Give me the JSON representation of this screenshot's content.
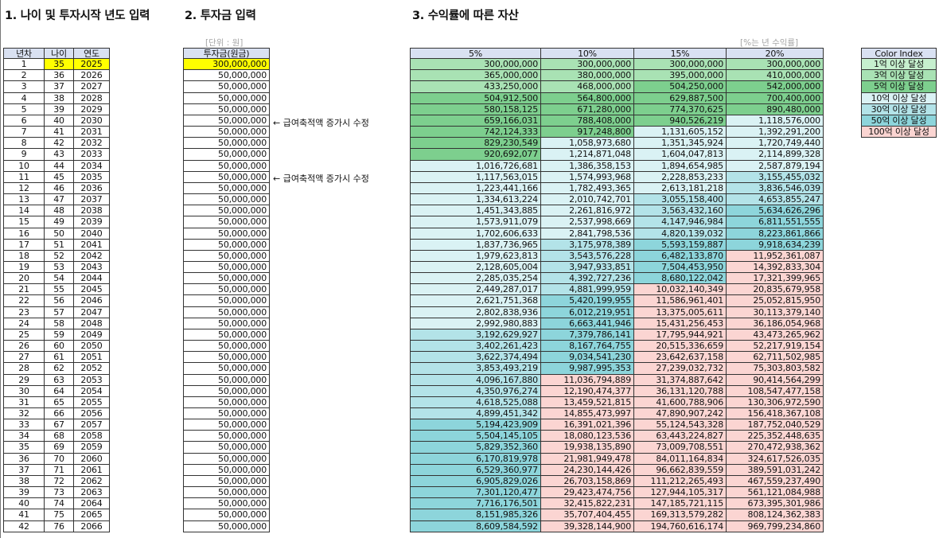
{
  "titles": {
    "section1": "1. 나이 및 투자시작 년도 입력",
    "section2": "2. 투자금 입력",
    "section3": "3. 수익률에 따른 자산"
  },
  "notes": {
    "unit": "[단위 : 원]",
    "rate": "[%는 년 수익률]"
  },
  "annotations": [
    "← 급여축적액 증가시 수정",
    "← 급여축적액 증가시 수정"
  ],
  "left_headers": [
    "년차",
    "나이",
    "연도"
  ],
  "invest_header": "투자금(원금)",
  "rate_headers": [
    "5%",
    "10%",
    "15%",
    "20%"
  ],
  "color_index": {
    "title": "Color Index",
    "items": [
      "1억 이상 달성",
      "3억 이상 달성",
      "5억 이상 달성",
      "10억 이상 달성",
      "30억 이상 달성",
      "50억 이상 달성",
      "100억 이상 달성"
    ]
  },
  "colors": {
    "header": "#d9e1f2",
    "input": "#ffff00",
    "levels": [
      "#c6efce",
      "#a9e2b4",
      "#7dcf8e",
      "#daf2f4",
      "#b3e3e8",
      "#8dd5db",
      "#fbd5d2"
    ]
  },
  "rows": [
    [
      "1",
      "35",
      "2025",
      "300,000,000",
      "300,000,000",
      "300,000,000",
      "300,000,000",
      "300,000,000"
    ],
    [
      "2",
      "36",
      "2026",
      "50,000,000",
      "365,000,000",
      "380,000,000",
      "395,000,000",
      "410,000,000"
    ],
    [
      "3",
      "37",
      "2027",
      "50,000,000",
      "433,250,000",
      "468,000,000",
      "504,250,000",
      "542,000,000"
    ],
    [
      "4",
      "38",
      "2028",
      "50,000,000",
      "504,912,500",
      "564,800,000",
      "629,887,500",
      "700,400,000"
    ],
    [
      "5",
      "39",
      "2029",
      "50,000,000",
      "580,158,125",
      "671,280,000",
      "774,370,625",
      "890,480,000"
    ],
    [
      "6",
      "40",
      "2030",
      "50,000,000",
      "659,166,031",
      "788,408,000",
      "940,526,219",
      "1,118,576,000"
    ],
    [
      "7",
      "41",
      "2031",
      "50,000,000",
      "742,124,333",
      "917,248,800",
      "1,131,605,152",
      "1,392,291,200"
    ],
    [
      "8",
      "42",
      "2032",
      "50,000,000",
      "829,230,549",
      "1,058,973,680",
      "1,351,345,924",
      "1,720,749,440"
    ],
    [
      "9",
      "43",
      "2033",
      "50,000,000",
      "920,692,077",
      "1,214,871,048",
      "1,604,047,813",
      "2,114,899,328"
    ],
    [
      "10",
      "44",
      "2034",
      "50,000,000",
      "1,016,726,681",
      "1,386,358,153",
      "1,894,654,985",
      "2,587,879,194"
    ],
    [
      "11",
      "45",
      "2035",
      "50,000,000",
      "1,117,563,015",
      "1,574,993,968",
      "2,228,853,233",
      "3,155,455,032"
    ],
    [
      "12",
      "46",
      "2036",
      "50,000,000",
      "1,223,441,166",
      "1,782,493,365",
      "2,613,181,218",
      "3,836,546,039"
    ],
    [
      "13",
      "47",
      "2037",
      "50,000,000",
      "1,334,613,224",
      "2,010,742,701",
      "3,055,158,400",
      "4,653,855,247"
    ],
    [
      "14",
      "48",
      "2038",
      "50,000,000",
      "1,451,343,885",
      "2,261,816,972",
      "3,563,432,160",
      "5,634,626,296"
    ],
    [
      "15",
      "49",
      "2039",
      "50,000,000",
      "1,573,911,079",
      "2,537,998,669",
      "4,147,946,984",
      "6,811,551,555"
    ],
    [
      "16",
      "50",
      "2040",
      "50,000,000",
      "1,702,606,633",
      "2,841,798,536",
      "4,820,139,032",
      "8,223,861,866"
    ],
    [
      "17",
      "51",
      "2041",
      "50,000,000",
      "1,837,736,965",
      "3,175,978,389",
      "5,593,159,887",
      "9,918,634,239"
    ],
    [
      "18",
      "52",
      "2042",
      "50,000,000",
      "1,979,623,813",
      "3,543,576,228",
      "6,482,133,870",
      "11,952,361,087"
    ],
    [
      "19",
      "53",
      "2043",
      "50,000,000",
      "2,128,605,004",
      "3,947,933,851",
      "7,504,453,950",
      "14,392,833,304"
    ],
    [
      "20",
      "54",
      "2044",
      "50,000,000",
      "2,285,035,254",
      "4,392,727,236",
      "8,680,122,042",
      "17,321,399,965"
    ],
    [
      "21",
      "55",
      "2045",
      "50,000,000",
      "2,449,287,017",
      "4,881,999,959",
      "10,032,140,349",
      "20,835,679,958"
    ],
    [
      "22",
      "56",
      "2046",
      "50,000,000",
      "2,621,751,368",
      "5,420,199,955",
      "11,586,961,401",
      "25,052,815,950"
    ],
    [
      "23",
      "57",
      "2047",
      "50,000,000",
      "2,802,838,936",
      "6,012,219,951",
      "13,375,005,611",
      "30,113,379,140"
    ],
    [
      "24",
      "58",
      "2048",
      "50,000,000",
      "2,992,980,883",
      "6,663,441,946",
      "15,431,256,453",
      "36,186,054,968"
    ],
    [
      "25",
      "59",
      "2049",
      "50,000,000",
      "3,192,629,927",
      "7,379,786,141",
      "17,795,944,921",
      "43,473,265,962"
    ],
    [
      "26",
      "60",
      "2050",
      "50,000,000",
      "3,402,261,423",
      "8,167,764,755",
      "20,515,336,659",
      "52,217,919,154"
    ],
    [
      "27",
      "61",
      "2051",
      "50,000,000",
      "3,622,374,494",
      "9,034,541,230",
      "23,642,637,158",
      "62,711,502,985"
    ],
    [
      "28",
      "62",
      "2052",
      "50,000,000",
      "3,853,493,219",
      "9,987,995,353",
      "27,239,032,732",
      "75,303,803,582"
    ],
    [
      "29",
      "63",
      "2053",
      "50,000,000",
      "4,096,167,880",
      "11,036,794,889",
      "31,374,887,642",
      "90,414,564,299"
    ],
    [
      "30",
      "64",
      "2054",
      "50,000,000",
      "4,350,976,274",
      "12,190,474,377",
      "36,131,120,788",
      "108,547,477,158"
    ],
    [
      "31",
      "65",
      "2055",
      "50,000,000",
      "4,618,525,088",
      "13,459,521,815",
      "41,600,788,906",
      "130,306,972,590"
    ],
    [
      "32",
      "66",
      "2056",
      "50,000,000",
      "4,899,451,342",
      "14,855,473,997",
      "47,890,907,242",
      "156,418,367,108"
    ],
    [
      "33",
      "67",
      "2057",
      "50,000,000",
      "5,194,423,909",
      "16,391,021,396",
      "55,124,543,328",
      "187,752,040,529"
    ],
    [
      "34",
      "68",
      "2058",
      "50,000,000",
      "5,504,145,105",
      "18,080,123,536",
      "63,443,224,827",
      "225,352,448,635"
    ],
    [
      "35",
      "69",
      "2059",
      "50,000,000",
      "5,829,352,360",
      "19,938,135,890",
      "73,009,708,551",
      "270,472,938,362"
    ],
    [
      "36",
      "70",
      "2060",
      "50,000,000",
      "6,170,819,978",
      "21,981,949,478",
      "84,011,164,834",
      "324,617,526,035"
    ],
    [
      "37",
      "71",
      "2061",
      "50,000,000",
      "6,529,360,977",
      "24,230,144,426",
      "96,662,839,559",
      "389,591,031,242"
    ],
    [
      "38",
      "72",
      "2062",
      "50,000,000",
      "6,905,829,026",
      "26,703,158,869",
      "111,212,265,493",
      "467,559,237,490"
    ],
    [
      "39",
      "73",
      "2063",
      "50,000,000",
      "7,301,120,477",
      "29,423,474,756",
      "127,944,105,317",
      "561,121,084,988"
    ],
    [
      "40",
      "74",
      "2064",
      "50,000,000",
      "7,716,176,501",
      "32,415,822,231",
      "147,185,721,115",
      "673,395,301,986"
    ],
    [
      "41",
      "75",
      "2065",
      "50,000,000",
      "8,151,985,326",
      "35,707,404,455",
      "169,313,579,282",
      "808,124,362,383"
    ],
    [
      "42",
      "76",
      "2066",
      "50,000,000",
      "8,609,584,592",
      "39,328,144,900",
      "194,760,616,174",
      "969,799,234,860"
    ]
  ]
}
